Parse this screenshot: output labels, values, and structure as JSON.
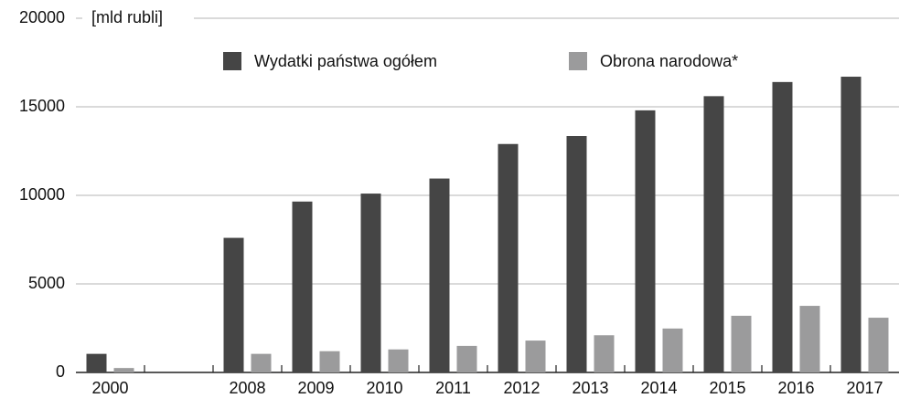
{
  "chart_data": {
    "type": "bar",
    "y_axis_label": "[mld rubli]",
    "categories": [
      "2000",
      null,
      "2008",
      "2009",
      "2010",
      "2011",
      "2012",
      "2013",
      "2014",
      "2015",
      "2016",
      "2017"
    ],
    "series": [
      {
        "name": "Wydatki państwa ogółem",
        "color": "#454545",
        "values": [
          1050,
          null,
          7600,
          9650,
          10100,
          10950,
          12900,
          13350,
          14800,
          15600,
          16400,
          16700
        ]
      },
      {
        "name": "Obrona narodowa*",
        "color": "#9b9b9c",
        "values": [
          250,
          null,
          1050,
          1200,
          1300,
          1500,
          1800,
          2100,
          2480,
          3200,
          3760,
          3090
        ]
      }
    ],
    "ylim": [
      0,
      20000
    ],
    "yticks": [
      0,
      5000,
      10000,
      15000,
      20000
    ],
    "grid": true
  }
}
